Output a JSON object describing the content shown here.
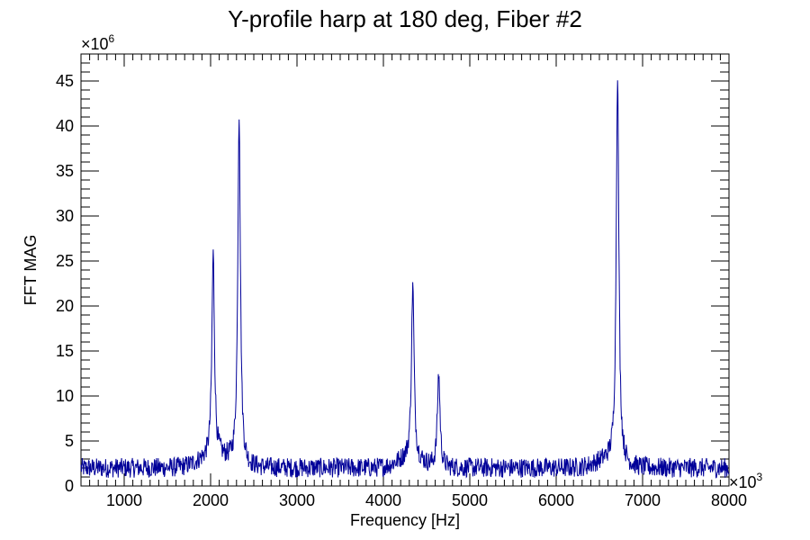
{
  "chart_data": {
    "type": "line",
    "title": "Y-profile harp at 180 deg, Fiber #2",
    "xlabel": "Frequency [Hz]",
    "ylabel": "FFT MAG",
    "x_exponent_label": "×10",
    "x_exponent": "3",
    "y_exponent_label": "×10",
    "y_exponent": "6",
    "xlim": [
      500,
      8000
    ],
    "ylim": [
      0,
      48
    ],
    "x_ticks": [
      1000,
      2000,
      3000,
      4000,
      5000,
      6000,
      7000,
      8000
    ],
    "y_ticks": [
      0,
      5,
      10,
      15,
      20,
      25,
      30,
      35,
      40,
      45
    ],
    "x_tick_labels": [
      "1000",
      "2000",
      "3000",
      "4000",
      "5000",
      "6000",
      "7000",
      "8000"
    ],
    "y_tick_labels": [
      "0",
      "5",
      "10",
      "15",
      "20",
      "25",
      "30",
      "35",
      "40",
      "45"
    ],
    "grid": false,
    "legend": "none",
    "line_color": "#000099",
    "baseline_noise": 2.0,
    "peaks": [
      {
        "x": 2030,
        "y": 24.5
      },
      {
        "x": 2330,
        "y": 41.2
      },
      {
        "x": 4340,
        "y": 21.5
      },
      {
        "x": 4640,
        "y": 12.5
      },
      {
        "x": 6710,
        "y": 45.5
      }
    ]
  }
}
